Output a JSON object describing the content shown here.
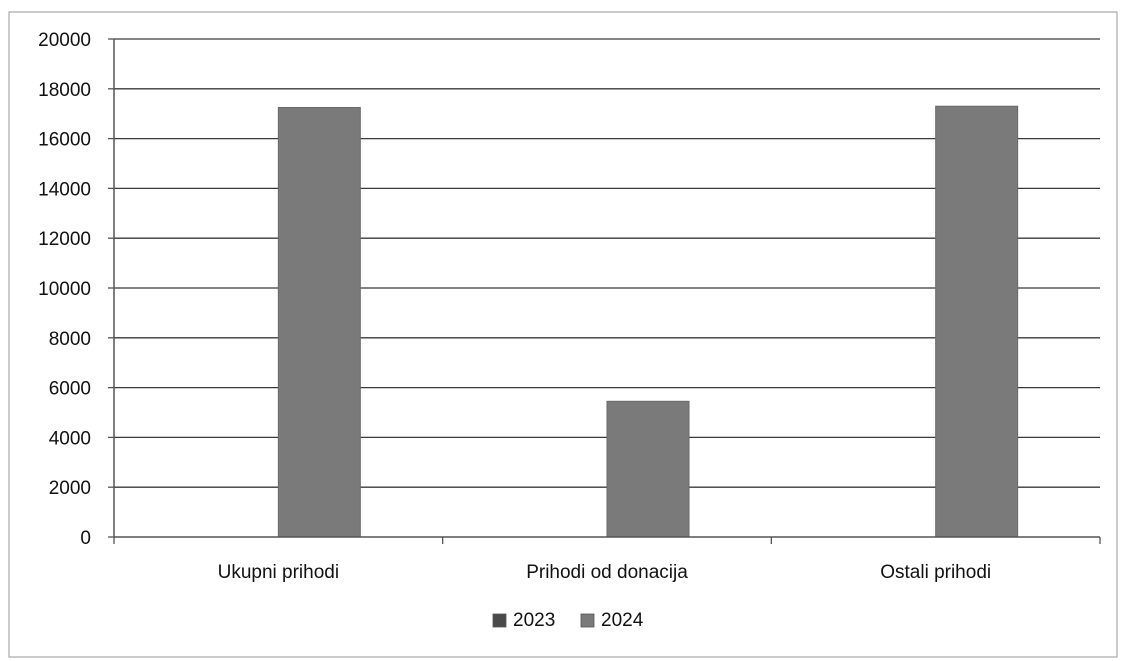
{
  "chart_data": {
    "type": "bar",
    "title": "",
    "xlabel": "",
    "ylabel": "",
    "categories": [
      "Ukupni prihodi",
      "Prihodi od donacija",
      "Ostali prihodi"
    ],
    "series": [
      {
        "name": "2023",
        "values": [
          null,
          null,
          null
        ],
        "color": "#4a4a4a"
      },
      {
        "name": "2024",
        "values": [
          17250,
          5450,
          17300
        ],
        "color": "#7a7a7a"
      }
    ],
    "ylim": [
      0,
      20000
    ],
    "yticks": [
      "0",
      "2000",
      "4000",
      "6000",
      "8000",
      "10000",
      "12000",
      "14000",
      "16000",
      "18000",
      "20000"
    ],
    "grid": true,
    "legend_position": "bottom-center"
  }
}
